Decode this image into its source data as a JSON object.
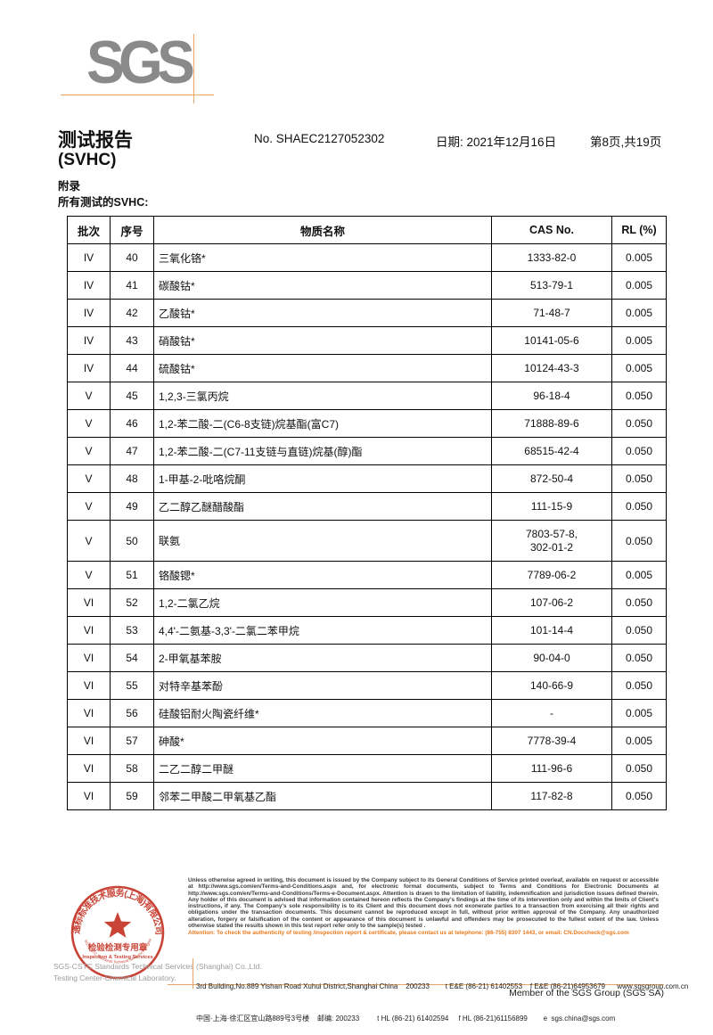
{
  "header": {
    "logo_text": "SGS",
    "title": "测试报告",
    "subtitle": "(SVHC)",
    "report_no": "No. SHAEC2127052302",
    "date": "日期: 2021年12月16日",
    "page_info": "第8页,共19页",
    "appendix": "附录",
    "section_label": "所有测试的SVHC:"
  },
  "table": {
    "columns": [
      "批次",
      "序号",
      "物质名称",
      "CAS No.",
      "RL (%)"
    ],
    "rows": [
      {
        "batch": "IV",
        "no": "40",
        "name": "三氧化铬*",
        "cas": "1333-82-0",
        "rl": "0.005"
      },
      {
        "batch": "IV",
        "no": "41",
        "name": "碳酸钴*",
        "cas": "513-79-1",
        "rl": "0.005"
      },
      {
        "batch": "IV",
        "no": "42",
        "name": "乙酸钴*",
        "cas": "71-48-7",
        "rl": "0.005"
      },
      {
        "batch": "IV",
        "no": "43",
        "name": "硝酸钴*",
        "cas": "10141-05-6",
        "rl": "0.005"
      },
      {
        "batch": "IV",
        "no": "44",
        "name": "硫酸钴*",
        "cas": "10124-43-3",
        "rl": "0.005"
      },
      {
        "batch": "V",
        "no": "45",
        "name": "1,2,3-三氯丙烷",
        "cas": "96-18-4",
        "rl": "0.050"
      },
      {
        "batch": "V",
        "no": "46",
        "name": "1,2-苯二酸-二(C6-8支链)烷基酯(富C7)",
        "cas": "71888-89-6",
        "rl": "0.050"
      },
      {
        "batch": "V",
        "no": "47",
        "name": "1,2-苯二酸-二(C7-11支链与直链)烷基(醇)酯",
        "cas": "68515-42-4",
        "rl": "0.050"
      },
      {
        "batch": "V",
        "no": "48",
        "name": "1-甲基-2-吡咯烷酮",
        "cas": "872-50-4",
        "rl": "0.050"
      },
      {
        "batch": "V",
        "no": "49",
        "name": "乙二醇乙醚醋酸酯",
        "cas": "111-15-9",
        "rl": "0.050"
      },
      {
        "batch": "V",
        "no": "50",
        "name": "联氨",
        "cas": "7803-57-8,\n302-01-2",
        "rl": "0.050"
      },
      {
        "batch": "V",
        "no": "51",
        "name": "铬酸锶*",
        "cas": "7789-06-2",
        "rl": "0.005"
      },
      {
        "batch": "VI",
        "no": "52",
        "name": "1,2-二氯乙烷",
        "cas": "107-06-2",
        "rl": "0.050"
      },
      {
        "batch": "VI",
        "no": "53",
        "name": "4,4'-二氨基-3,3'-二氯二苯甲烷",
        "cas": "101-14-4",
        "rl": "0.050"
      },
      {
        "batch": "VI",
        "no": "54",
        "name": "2-甲氧基苯胺",
        "cas": "90-04-0",
        "rl": "0.050"
      },
      {
        "batch": "VI",
        "no": "55",
        "name": "对特辛基苯酚",
        "cas": "140-66-9",
        "rl": "0.050"
      },
      {
        "batch": "VI",
        "no": "56",
        "name": "硅酸铝耐火陶瓷纤维*",
        "cas": "-",
        "rl": "0.005"
      },
      {
        "batch": "VI",
        "no": "57",
        "name": "砷酸*",
        "cas": "7778-39-4",
        "rl": "0.005"
      },
      {
        "batch": "VI",
        "no": "58",
        "name": "二乙二醇二甲醚",
        "cas": "111-96-6",
        "rl": "0.050"
      },
      {
        "batch": "VI",
        "no": "59",
        "name": "邻苯二甲酸二甲氧基乙酯",
        "cas": "117-82-8",
        "rl": "0.050"
      }
    ]
  },
  "footer": {
    "terms": "Unless otherwise agreed in writing, this document is issued by the Company subject to its General Conditions of Service printed overleaf, available on request or accessible at http://www.sgs.com/en/Terms-and-Conditions.aspx and, for electronic format documents, subject to Terms and Conditions for Electronic Documents at http://www.sgs.com/en/Terms-and-Conditions/Terms-e-Document.aspx. Attention is drawn to the limitation of liability, indemnification and jurisdiction issues defined therein. Any holder of this document is advised that information contained hereon reflects the Company's findings at the time of its intervention only and within the limits of Client's instructions, if any. The Company's sole responsibility is to its Client and this document does not exonerate parties to a transaction from exercising all their rights and obligations under the transaction documents. This document cannot be reproduced except in full, without prior written approval of the Company. Any unauthorized alteration, forgery or falsification of the content or appearance of this document is unlawful and offenders may be prosecuted to the fullest extent of the law. Unless otherwise stated the results shown in this test report refer only to the sample(s) tested .",
    "attention": "Attention: To check the authenticity of testing /inspection report & certificate, please contact us at telephone: (86-755) 8307 1443, or email: CN.Doccheck@sgs.com",
    "address_line_en": "3rd Building,No.889 Yishan Road Xuhui District,Shanghai China    200233        t E&E (86-21) 61402553    f E&E (86-21)64953679      www.sgsgroup.com.cn",
    "address_line_cn": "中国·上海·徐汇区宜山路889号3号楼    邮编: 200233         t HL (86-21) 61402594     f HL (86-21)61156899        e  sgs.china@sgs.com",
    "member": "Member of the SGS Group (SGS SA)",
    "company_line1": "SGS-CSTC Standards Technical Services (Shanghai) Co.,Ltd.",
    "company_line2": "Testing Center-Chemical Laboratory.",
    "seal": {
      "ring_text": "通标标准技术服务(上海)有限公司",
      "inner_text": "检验检测专用章",
      "inner_text_en": "Inspection & Testing Services",
      "bottom_arc_text": "SGS-CSTC Standards Technical Services(Shanghai)Co.,Ltd."
    }
  },
  "colors": {
    "logo_gray": "#8a8a8a",
    "accent_orange": "#e9a567",
    "seal_red": "#c53527",
    "attention_orange": "#e87a1d"
  }
}
